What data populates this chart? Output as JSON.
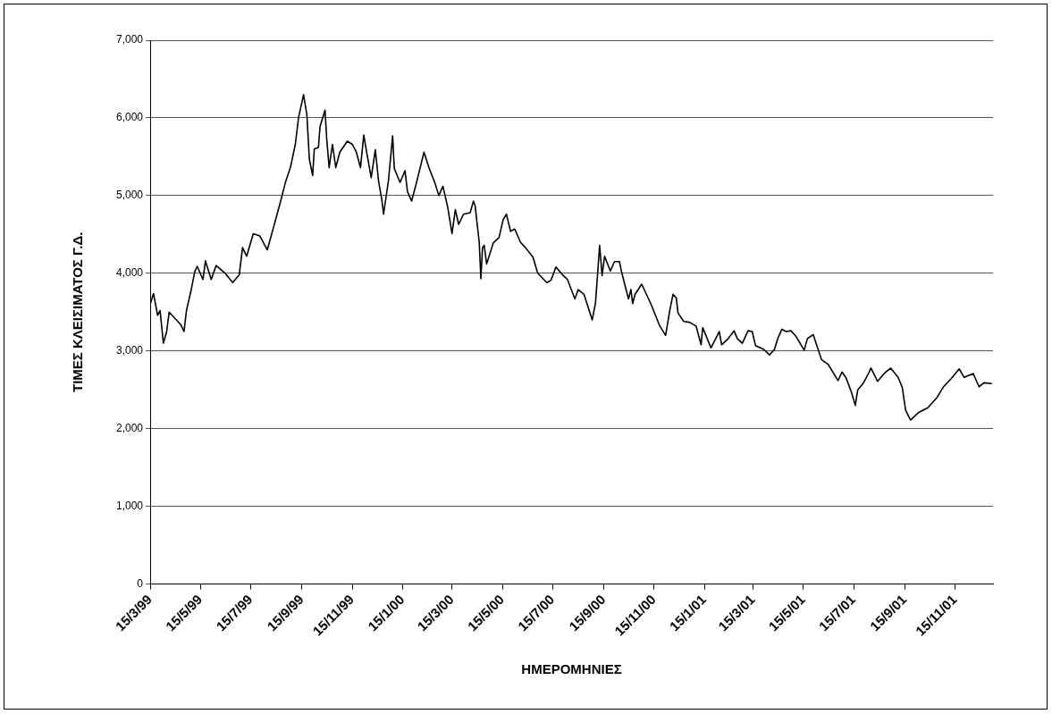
{
  "chart_data": {
    "type": "line",
    "xlabel": "ΗΜΕΡΟΜΗΝΙΕΣ",
    "ylabel": "ΤΙΜΕΣ ΚΛΕΙΣΙΜΑΤΟΣ Γ.Δ.",
    "x": [
      "1999-03-15",
      "1999-03-19",
      "1999-03-24",
      "1999-03-27",
      "1999-03-31",
      "1999-04-04",
      "1999-04-07",
      "1999-04-21",
      "1999-04-25",
      "1999-04-28",
      "1999-05-04",
      "1999-05-08",
      "1999-05-11",
      "1999-05-18",
      "1999-05-21",
      "1999-05-28",
      "1999-06-03",
      "1999-06-14",
      "1999-06-23",
      "1999-07-01",
      "1999-07-05",
      "1999-07-10",
      "1999-07-18",
      "1999-07-26",
      "1999-08-04",
      "1999-08-11",
      "1999-08-19",
      "1999-08-26",
      "1999-09-01",
      "1999-09-07",
      "1999-09-11",
      "1999-09-17",
      "1999-09-21",
      "1999-09-24",
      "1999-09-28",
      "1999-09-30",
      "1999-10-05",
      "1999-10-07",
      "1999-10-13",
      "1999-10-15",
      "1999-10-18",
      "1999-10-22",
      "1999-10-26",
      "1999-10-31",
      "1999-11-09",
      "1999-11-15",
      "1999-11-20",
      "1999-11-25",
      "1999-11-29",
      "1999-12-02",
      "1999-12-08",
      "1999-12-13",
      "1999-12-17",
      "1999-12-21",
      "1999-12-23",
      "1999-12-29",
      "2000-01-03",
      "2000-01-05",
      "2000-01-12",
      "2000-01-18",
      "2000-01-21",
      "2000-01-26",
      "2000-02-01",
      "2000-02-10",
      "2000-02-16",
      "2000-02-23",
      "2000-02-28",
      "2000-03-04",
      "2000-03-10",
      "2000-03-15",
      "2000-03-19",
      "2000-03-23",
      "2000-03-29",
      "2000-04-06",
      "2000-04-10",
      "2000-04-12",
      "2000-04-17",
      "2000-04-19",
      "2000-04-21",
      "2000-04-23",
      "2000-04-26",
      "2000-05-04",
      "2000-05-11",
      "2000-05-16",
      "2000-05-20",
      "2000-05-25",
      "2000-05-30",
      "2000-06-06",
      "2000-06-12",
      "2000-06-21",
      "2000-06-27",
      "2000-07-08",
      "2000-07-13",
      "2000-07-19",
      "2000-07-28",
      "2000-08-02",
      "2000-08-11",
      "2000-08-15",
      "2000-08-22",
      "2000-09-01",
      "2000-09-05",
      "2000-09-10",
      "2000-09-13",
      "2000-09-16",
      "2000-09-23",
      "2000-09-28",
      "2000-10-04",
      "2000-10-07",
      "2000-10-15",
      "2000-10-18",
      "2000-10-20",
      "2000-10-23",
      "2000-10-31",
      "2000-11-11",
      "2000-11-22",
      "2000-11-29",
      "2000-12-04",
      "2000-12-08",
      "2000-12-12",
      "2000-12-14",
      "2000-12-21",
      "2000-12-28",
      "2001-01-05",
      "2001-01-11",
      "2001-01-13",
      "2001-01-23",
      "2001-02-02",
      "2001-02-05",
      "2001-02-13",
      "2001-02-20",
      "2001-02-24",
      "2001-03-02",
      "2001-03-09",
      "2001-03-14",
      "2001-03-18",
      "2001-03-28",
      "2001-04-04",
      "2001-04-10",
      "2001-04-14",
      "2001-04-19",
      "2001-04-24",
      "2001-04-30",
      "2001-05-06",
      "2001-05-16",
      "2001-05-20",
      "2001-05-27",
      "2001-05-31",
      "2001-06-06",
      "2001-06-14",
      "2001-06-26",
      "2001-07-01",
      "2001-07-06",
      "2001-07-12",
      "2001-07-17",
      "2001-07-20",
      "2001-07-27",
      "2001-08-02",
      "2001-08-05",
      "2001-08-13",
      "2001-08-21",
      "2001-08-29",
      "2001-09-07",
      "2001-09-12",
      "2001-09-16",
      "2001-09-22",
      "2001-10-02",
      "2001-10-13",
      "2001-10-24",
      "2001-11-01",
      "2001-11-10",
      "2001-11-20",
      "2001-11-26",
      "2001-12-07",
      "2001-12-14",
      "2001-12-20",
      "2001-12-29"
    ],
    "series": [
      {
        "color": "#000000",
        "values": [
          3600,
          3740,
          3460,
          3520,
          3100,
          3250,
          3500,
          3340,
          3250,
          3520,
          3800,
          4020,
          4090,
          3920,
          4160,
          3920,
          4100,
          4000,
          3880,
          3980,
          4330,
          4220,
          4510,
          4480,
          4300,
          4570,
          4880,
          5170,
          5360,
          5660,
          6010,
          6300,
          6040,
          5470,
          5260,
          5600,
          5620,
          5890,
          6100,
          5740,
          5360,
          5660,
          5360,
          5560,
          5700,
          5660,
          5560,
          5360,
          5780,
          5590,
          5230,
          5590,
          5180,
          4940,
          4760,
          5200,
          5770,
          5350,
          5170,
          5320,
          5050,
          4930,
          5170,
          5560,
          5360,
          5170,
          5000,
          5120,
          4840,
          4510,
          4820,
          4630,
          4760,
          4780,
          4930,
          4870,
          4400,
          3930,
          4330,
          4360,
          4120,
          4390,
          4460,
          4690,
          4760,
          4540,
          4570,
          4400,
          4330,
          4210,
          4000,
          3880,
          3910,
          4080,
          3970,
          3920,
          3670,
          3790,
          3730,
          3400,
          3620,
          4360,
          3970,
          4220,
          4030,
          4150,
          4150,
          4000,
          3670,
          3790,
          3610,
          3730,
          3860,
          3610,
          3320,
          3200,
          3520,
          3730,
          3680,
          3490,
          3380,
          3370,
          3320,
          3080,
          3300,
          3040,
          3250,
          3080,
          3160,
          3260,
          3160,
          3100,
          3260,
          3250,
          3070,
          3020,
          2950,
          3020,
          3160,
          3280,
          3250,
          3260,
          3190,
          3010,
          3160,
          3210,
          3080,
          2890,
          2830,
          2620,
          2730,
          2650,
          2480,
          2300,
          2500,
          2590,
          2710,
          2780,
          2610,
          2710,
          2780,
          2660,
          2530,
          2240,
          2110,
          2210,
          2270,
          2400,
          2540,
          2640,
          2770,
          2660,
          2710,
          2540,
          2590,
          2580
        ]
      }
    ],
    "xlim": [
      "1999-03-15",
      "2001-12-31"
    ],
    "xticks": [
      {
        "value": "1999-03-15",
        "label": "15/3/99"
      },
      {
        "value": "1999-05-15",
        "label": "15/5/99"
      },
      {
        "value": "1999-07-15",
        "label": "15/7/99"
      },
      {
        "value": "1999-09-15",
        "label": "15/9/99"
      },
      {
        "value": "1999-11-15",
        "label": "15/11/99"
      },
      {
        "value": "2000-01-15",
        "label": "15/1/00"
      },
      {
        "value": "2000-03-15",
        "label": "15/3/00"
      },
      {
        "value": "2000-05-15",
        "label": "15/5/00"
      },
      {
        "value": "2000-07-15",
        "label": "15/7/00"
      },
      {
        "value": "2000-09-15",
        "label": "15/9/00"
      },
      {
        "value": "2000-11-15",
        "label": "15/11/00"
      },
      {
        "value": "2001-01-15",
        "label": "15/1/01"
      },
      {
        "value": "2001-03-15",
        "label": "15/3/01"
      },
      {
        "value": "2001-05-15",
        "label": "15/5/01"
      },
      {
        "value": "2001-07-15",
        "label": "15/7/01"
      },
      {
        "value": "2001-09-15",
        "label": "15/9/01"
      },
      {
        "value": "2001-11-15",
        "label": "15/11/01"
      }
    ],
    "ylim": [
      0,
      7000
    ],
    "yticks": [
      0,
      {
        "value": 1000,
        "label": "1,000"
      },
      {
        "value": 2000,
        "label": "2,000"
      },
      {
        "value": 3000,
        "label": "3,000"
      },
      {
        "value": 4000,
        "label": "4,000"
      },
      {
        "value": 5000,
        "label": "5,000"
      },
      {
        "value": 6000,
        "label": "6,000"
      },
      {
        "value": 7000,
        "label": "7,000"
      }
    ],
    "grid": "y",
    "legend": false,
    "marker": "none",
    "line_style": "solid"
  }
}
